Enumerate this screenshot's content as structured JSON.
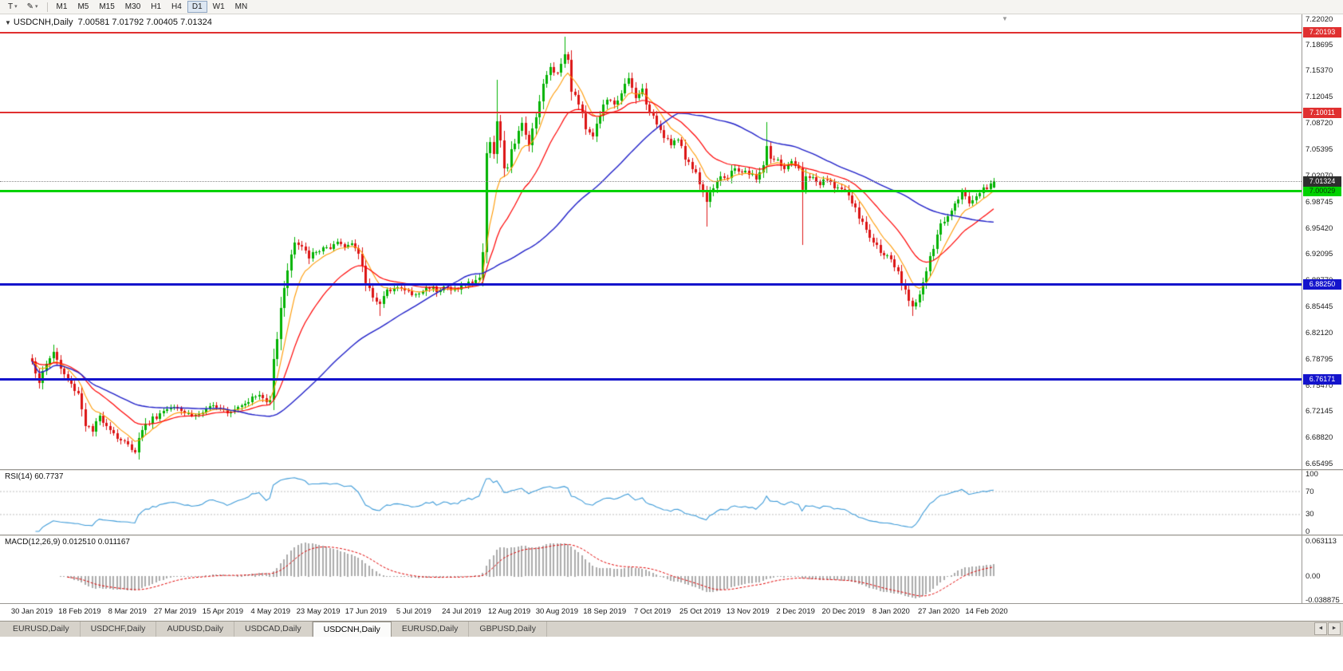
{
  "toolbar": {
    "text_tool_glyph": "T",
    "pencil_glyph": "✎",
    "caret_glyph": "▾",
    "timeframes": [
      "M1",
      "M5",
      "M15",
      "M30",
      "H1",
      "H4",
      "D1",
      "W1",
      "MN"
    ],
    "active_timeframe": "D1"
  },
  "chart": {
    "symbol_title": "USDCNH,Daily",
    "ohlc_text": "7.00581 7.01792 7.00405 7.01324",
    "dropdown_glyph": "▼",
    "shift_marker_glyph": "▼"
  },
  "axis": {
    "price_ticks": [
      "7.22020",
      "7.18695",
      "7.15370",
      "7.12045",
      "7.08720",
      "7.05395",
      "7.02070",
      "6.98745",
      "6.95420",
      "6.92095",
      "6.88770",
      "6.85445",
      "6.82120",
      "6.78795",
      "6.75470",
      "6.72145",
      "6.68820",
      "6.65495"
    ],
    "rsi_ticks": [
      "100",
      "70",
      "30",
      "0"
    ],
    "macd_ticks": [
      "0.063113",
      "0.00",
      "-0.038875"
    ]
  },
  "tabs": {
    "items": [
      "EURUSD,Daily",
      "USDCHF,Daily",
      "AUDUSD,Daily",
      "USDCAD,Daily",
      "USDCNH,Daily",
      "EURUSD,Daily",
      "GBPUSD,Daily"
    ],
    "active_index": 4,
    "left_arrow": "◄",
    "right_arrow": "►"
  },
  "chart_data": {
    "type": "candlestick",
    "symbol": "USDCNH",
    "timeframe": "Daily",
    "title": "USDCNH,Daily 7.00581 7.01792 7.00405 7.01324",
    "last_bar": {
      "open": 7.00581,
      "high": 7.01792,
      "low": 7.00405,
      "close": 7.01324
    },
    "bars_total": 272,
    "bars_per_label": 13.45,
    "x_labels": [
      "30 Jan 2019",
      "18 Feb 2019",
      "8 Mar 2019",
      "27 Mar 2019",
      "15 Apr 2019",
      "4 May 2019",
      "23 May 2019",
      "17 Jun 2019",
      "5 Jul 2019",
      "24 Jul 2019",
      "12 Aug 2019",
      "30 Aug 2019",
      "18 Sep 2019",
      "7 Oct 2019",
      "25 Oct 2019",
      "13 Nov 2019",
      "2 Dec 2019",
      "20 Dec 2019",
      "8 Jan 2020",
      "27 Jan 2020",
      "14 Feb 2020"
    ],
    "y_range": {
      "price_max": 7.225,
      "price_min": 6.648
    },
    "price_anchors": [
      [
        0,
        6.785
      ],
      [
        2,
        6.76
      ],
      [
        4,
        6.78
      ],
      [
        6,
        6.798
      ],
      [
        8,
        6.775
      ],
      [
        11,
        6.755
      ],
      [
        13,
        6.745
      ],
      [
        15,
        6.705
      ],
      [
        17,
        6.695
      ],
      [
        19,
        6.715
      ],
      [
        22,
        6.7
      ],
      [
        24,
        6.688
      ],
      [
        27,
        6.678
      ],
      [
        29,
        6.672
      ],
      [
        31,
        6.7
      ],
      [
        34,
        6.712
      ],
      [
        37,
        6.722
      ],
      [
        40,
        6.731
      ],
      [
        43,
        6.72
      ],
      [
        46,
        6.716
      ],
      [
        49,
        6.722
      ],
      [
        52,
        6.73
      ],
      [
        55,
        6.722
      ],
      [
        58,
        6.728
      ],
      [
        61,
        6.736
      ],
      [
        64,
        6.742
      ],
      [
        66,
        6.732
      ],
      [
        67,
        6.74
      ],
      [
        68,
        6.79
      ],
      [
        69,
        6.815
      ],
      [
        70,
        6.85
      ],
      [
        71,
        6.88
      ],
      [
        72,
        6.902
      ],
      [
        73,
        6.92
      ],
      [
        74,
        6.935
      ],
      [
        76,
        6.928
      ],
      [
        78,
        6.918
      ],
      [
        80,
        6.922
      ],
      [
        82,
        6.93
      ],
      [
        84,
        6.925
      ],
      [
        86,
        6.935
      ],
      [
        88,
        6.93
      ],
      [
        90,
        6.938
      ],
      [
        92,
        6.92
      ],
      [
        94,
        6.885
      ],
      [
        96,
        6.868
      ],
      [
        98,
        6.858
      ],
      [
        100,
        6.872
      ],
      [
        102,
        6.882
      ],
      [
        104,
        6.876
      ],
      [
        106,
        6.872
      ],
      [
        108,
        6.868
      ],
      [
        110,
        6.874
      ],
      [
        112,
        6.88
      ],
      [
        114,
        6.876
      ],
      [
        116,
        6.88
      ],
      [
        118,
        6.874
      ],
      [
        120,
        6.878
      ],
      [
        122,
        6.882
      ],
      [
        124,
        6.886
      ],
      [
        126,
        6.892
      ],
      [
        127,
        6.92
      ],
      [
        128,
        7.052
      ],
      [
        129,
        7.065
      ],
      [
        130,
        7.048
      ],
      [
        131,
        7.088
      ],
      [
        132,
        7.062
      ],
      [
        133,
        7.03
      ],
      [
        134,
        7.028
      ],
      [
        135,
        7.055
      ],
      [
        136,
        7.062
      ],
      [
        138,
        7.085
      ],
      [
        140,
        7.062
      ],
      [
        142,
        7.098
      ],
      [
        144,
        7.135
      ],
      [
        146,
        7.158
      ],
      [
        148,
        7.15
      ],
      [
        150,
        7.178
      ],
      [
        151,
        7.165
      ],
      [
        152,
        7.13
      ],
      [
        154,
        7.112
      ],
      [
        156,
        7.082
      ],
      [
        158,
        7.072
      ],
      [
        160,
        7.098
      ],
      [
        162,
        7.118
      ],
      [
        164,
        7.108
      ],
      [
        166,
        7.128
      ],
      [
        168,
        7.142
      ],
      [
        170,
        7.118
      ],
      [
        172,
        7.13
      ],
      [
        174,
        7.098
      ],
      [
        176,
        7.088
      ],
      [
        178,
        7.072
      ],
      [
        180,
        7.062
      ],
      [
        182,
        7.066
      ],
      [
        184,
        7.042
      ],
      [
        186,
        7.032
      ],
      [
        188,
        7.012
      ],
      [
        190,
        6.988
      ],
      [
        192,
        7.008
      ],
      [
        194,
        7.022
      ],
      [
        196,
        7.016
      ],
      [
        198,
        7.03
      ],
      [
        200,
        7.026
      ],
      [
        202,
        7.022
      ],
      [
        204,
        7.018
      ],
      [
        206,
        7.032
      ],
      [
        207,
        7.06
      ],
      [
        208,
        7.042
      ],
      [
        210,
        7.038
      ],
      [
        212,
        7.03
      ],
      [
        214,
        7.035
      ],
      [
        216,
        7.028
      ],
      [
        217,
        7.0
      ],
      [
        218,
        7.022
      ],
      [
        220,
        7.016
      ],
      [
        222,
        7.01
      ],
      [
        224,
        7.014
      ],
      [
        226,
        7.008
      ],
      [
        228,
        7.002
      ],
      [
        230,
        6.996
      ],
      [
        232,
        6.976
      ],
      [
        234,
        6.96
      ],
      [
        236,
        6.942
      ],
      [
        238,
        6.93
      ],
      [
        240,
        6.922
      ],
      [
        242,
        6.91
      ],
      [
        244,
        6.896
      ],
      [
        246,
        6.872
      ],
      [
        248,
        6.856
      ],
      [
        250,
        6.87
      ],
      [
        252,
        6.9
      ],
      [
        254,
        6.928
      ],
      [
        256,
        6.958
      ],
      [
        258,
        6.97
      ],
      [
        260,
        6.988
      ],
      [
        262,
        7.0
      ],
      [
        264,
        6.986
      ],
      [
        266,
        6.996
      ],
      [
        268,
        7.004
      ],
      [
        270,
        7.008
      ],
      [
        271,
        7.013
      ]
    ],
    "wick_overrides": [
      [
        6,
        "h",
        6.806
      ],
      [
        98,
        "l",
        6.842
      ],
      [
        131,
        "h",
        7.142
      ],
      [
        150,
        "h",
        7.1965
      ],
      [
        190,
        "l",
        6.956
      ],
      [
        207,
        "h",
        7.088
      ],
      [
        217,
        "l",
        6.932
      ],
      [
        248,
        "l",
        6.8424
      ]
    ],
    "levels": [
      {
        "name": "resistance-line-upper",
        "label": "7.20193",
        "price": 7.20193,
        "color": "#E03030",
        "text_color": "#ffffff",
        "width": 2
      },
      {
        "name": "resistance-line-lower",
        "label": "7.10011",
        "price": 7.10011,
        "color": "#E03030",
        "text_color": "#ffffff",
        "width": 2
      },
      {
        "name": "pivot-line-green",
        "label": "7.00029",
        "price": 7.00029,
        "color": "#00D200",
        "text_color": "#063a06",
        "width": 3
      },
      {
        "name": "support-line-blue-upper",
        "label": "6.88250",
        "price": 6.8825,
        "color": "#1414CC",
        "text_color": "#ffffff",
        "width": 3
      },
      {
        "name": "support-line-blue-lower",
        "label": "6.76171",
        "price": 6.76171,
        "color": "#1414CC",
        "text_color": "#ffffff",
        "width": 3
      }
    ],
    "current_price": {
      "label": "7.01324",
      "value": 7.01324,
      "badge_bg": "#2e2e2e",
      "badge_text": "#ffffff"
    },
    "moving_averages": [
      {
        "name": "fast",
        "type": "ema",
        "period": 8,
        "color": "#FF9900"
      },
      {
        "name": "medium",
        "type": "ema",
        "period": 21,
        "color": "#FF0000"
      },
      {
        "name": "slow",
        "type": "sma",
        "period": 55,
        "color": "#2020C8"
      }
    ],
    "indicators": {
      "rsi": {
        "name": "RSI(14)",
        "period": 14,
        "value": "60.7737",
        "levels": [
          70,
          30
        ]
      },
      "macd": {
        "name": "MACD(12,26,9)",
        "fast": 12,
        "slow": 26,
        "signal": 9,
        "values": "0.012510 0.011167",
        "range": {
          "max": 0.063113,
          "min": -0.038875
        }
      }
    },
    "colors": {
      "up": "#00B200",
      "down": "#DC1414",
      "ma_fast": "#FF9900",
      "ma_mid": "#FF0000",
      "ma_slow": "#2020C8",
      "rsi": "#3E9BD8",
      "rsi_level": "#bdbdbd",
      "macd_hist": "#ABABAB",
      "macd_signal": "#E00000"
    }
  }
}
